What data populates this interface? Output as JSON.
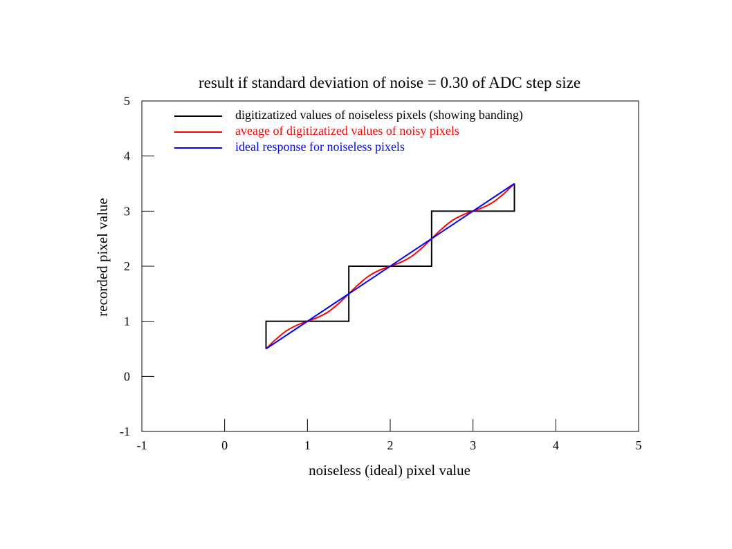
{
  "chart_data": {
    "type": "line",
    "title": "result if standard deviation of noise = 0.30 of ADC step size",
    "xlabel": "noiseless (ideal) pixel value",
    "ylabel": "recorded pixel value",
    "xlim": [
      -1,
      5
    ],
    "ylim": [
      -1,
      5
    ],
    "xticks": [
      "-1",
      "0",
      "1",
      "2",
      "3",
      "4",
      "5"
    ],
    "yticks": [
      "-1",
      "0",
      "1",
      "2",
      "3",
      "4",
      "5"
    ],
    "grid": false,
    "legend_position": "top-left",
    "series": [
      {
        "name": "digitizatized values of noiseless pixels (showing banding)",
        "color": "#000000",
        "x": [
          0.5,
          0.5,
          1.5,
          1.5,
          2.5,
          2.5,
          3.5,
          3.5
        ],
        "y": [
          0.5,
          1,
          1,
          2,
          2,
          3,
          3,
          3.5
        ]
      },
      {
        "name": "aveage of digitizatized values of noisy pixels",
        "color": "#ff0000",
        "x": [
          0.5,
          0.625,
          0.75,
          0.875,
          1.0,
          1.125,
          1.25,
          1.375,
          1.5,
          1.625,
          1.75,
          1.875,
          2.0,
          2.125,
          2.25,
          2.375,
          2.5,
          2.625,
          2.75,
          2.875,
          3.0,
          3.125,
          3.25,
          3.375,
          3.5
        ],
        "y": [
          0.5,
          0.68,
          0.83,
          0.93,
          1.0,
          1.07,
          1.17,
          1.32,
          1.5,
          1.68,
          1.83,
          1.93,
          2.0,
          2.07,
          2.17,
          2.32,
          2.5,
          2.68,
          2.83,
          2.93,
          3.0,
          3.07,
          3.17,
          3.32,
          3.5
        ]
      },
      {
        "name": "ideal response for noiseless pixels",
        "color": "#0000ff",
        "x": [
          0.5,
          3.5
        ],
        "y": [
          0.5,
          3.5
        ]
      }
    ]
  }
}
